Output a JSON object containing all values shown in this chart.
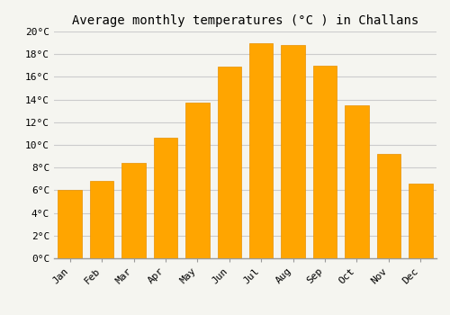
{
  "title": "Average monthly temperatures (°C ) in Challans",
  "months": [
    "Jan",
    "Feb",
    "Mar",
    "Apr",
    "May",
    "Jun",
    "Jul",
    "Aug",
    "Sep",
    "Oct",
    "Nov",
    "Dec"
  ],
  "temperatures": [
    6.0,
    6.8,
    8.4,
    10.6,
    13.7,
    16.9,
    19.0,
    18.8,
    17.0,
    13.5,
    9.2,
    6.6
  ],
  "bar_color": "#FFA500",
  "bar_edge_color": "#E89000",
  "background_color": "#F5F5F0",
  "plot_bg_color": "#F5F5F0",
  "grid_color": "#CCCCCC",
  "ylim": [
    0,
    20
  ],
  "ytick_step": 2,
  "title_fontsize": 10,
  "tick_fontsize": 8,
  "tick_font_family": "monospace"
}
